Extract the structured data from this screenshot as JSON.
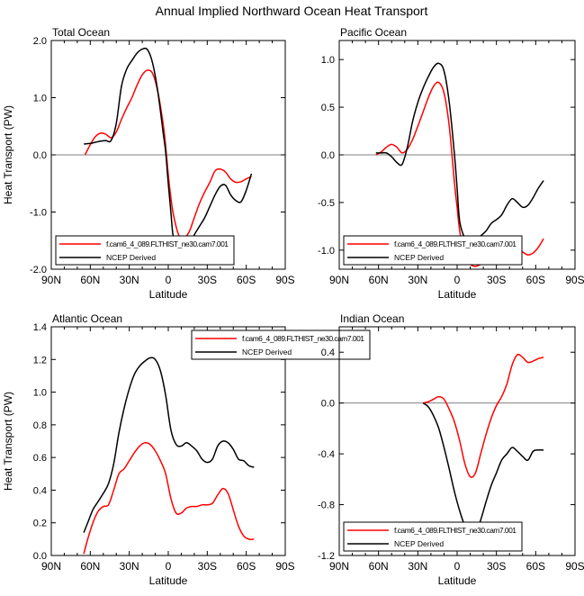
{
  "figure": {
    "title": "Annual Implied Northward Ocean Heat Transport"
  },
  "colors": {
    "model": "#ff0000",
    "ncep": "#000000",
    "zero_line": "#808080",
    "frame": "#000000"
  },
  "legend_labels": {
    "model": "f.cam6_4_089.FLTHIST_ne30.cam7.001",
    "ncep": "NCEP Derived"
  },
  "chart_data": [
    {
      "type": "line",
      "title": "Total Ocean",
      "xlabel": "Latitude",
      "ylabel": "Heat Transport (PW)",
      "xlim": [
        90,
        -90
      ],
      "ylim": [
        -2.0,
        2.0
      ],
      "x_ticks": [
        90,
        60,
        30,
        0,
        -30,
        -60,
        -90
      ],
      "x_tick_labels": [
        "90N",
        "60N",
        "30N",
        "0",
        "30S",
        "60S",
        "90S"
      ],
      "y_ticks": [
        -2.0,
        -1.0,
        0.0,
        1.0,
        2.0
      ],
      "y_tick_labels": [
        "-2.0",
        "-1.0",
        "0.0",
        "1.0",
        "2.0"
      ],
      "zero_line": true,
      "legend_position": "bottom-left",
      "series": [
        {
          "name": "f.cam6_4_089.FLTHIST_ne30.cam7.001",
          "color": "#ff0000",
          "x": [
            64,
            60,
            56,
            52,
            48,
            44,
            40,
            36,
            32,
            28,
            24,
            20,
            16,
            12,
            8,
            4,
            2,
            0,
            -2,
            -4,
            -8,
            -12,
            -16,
            -20,
            -24,
            -28,
            -32,
            -36,
            -40,
            -44,
            -48,
            -52,
            -56,
            -60,
            -64
          ],
          "y": [
            0.0,
            0.18,
            0.32,
            0.38,
            0.36,
            0.3,
            0.4,
            0.62,
            0.82,
            1.0,
            1.22,
            1.4,
            1.48,
            1.42,
            1.1,
            0.55,
            0.15,
            -0.35,
            -0.75,
            -1.05,
            -1.4,
            -1.45,
            -1.35,
            -1.1,
            -0.85,
            -0.65,
            -0.48,
            -0.28,
            -0.25,
            -0.3,
            -0.42,
            -0.48,
            -0.47,
            -0.42,
            -0.38
          ]
        },
        {
          "name": "NCEP Derived",
          "color": "#000000",
          "x": [
            65,
            60,
            56,
            52,
            48,
            44,
            40,
            36,
            32,
            28,
            24,
            20,
            16,
            12,
            8,
            4,
            2,
            0,
            -2,
            -4,
            -8,
            -12,
            -16,
            -20,
            -24,
            -28,
            -32,
            -36,
            -40,
            -44,
            -48,
            -52,
            -56,
            -60,
            -64
          ],
          "y": [
            0.19,
            0.2,
            0.22,
            0.24,
            0.25,
            0.25,
            0.55,
            1.2,
            1.5,
            1.65,
            1.78,
            1.85,
            1.84,
            1.6,
            1.1,
            0.4,
            0.05,
            -0.5,
            -1.0,
            -1.45,
            -1.6,
            -1.65,
            -1.58,
            -1.4,
            -1.25,
            -1.1,
            -0.9,
            -0.7,
            -0.55,
            -0.53,
            -0.7,
            -0.8,
            -0.82,
            -0.62,
            -0.33
          ]
        }
      ]
    },
    {
      "type": "line",
      "title": "Pacific Ocean",
      "xlabel": "Latitude",
      "ylabel": "",
      "xlim": [
        90,
        -90
      ],
      "ylim": [
        -1.2,
        1.2
      ],
      "x_ticks": [
        90,
        60,
        30,
        0,
        -30,
        -60,
        -90
      ],
      "x_tick_labels": [
        "90N",
        "60N",
        "30N",
        "0",
        "30S",
        "60S",
        "90S"
      ],
      "y_ticks": [
        -1.0,
        -0.5,
        0.0,
        0.5,
        1.0
      ],
      "y_tick_labels": [
        "-1.0",
        "-0.5",
        "0.0",
        "0.5",
        "1.0"
      ],
      "zero_line": true,
      "legend_position": "bottom-left",
      "series": [
        {
          "name": "f.cam6_4_089.FLTHIST_ne30.cam7.001",
          "color": "#ff0000",
          "x": [
            62,
            58,
            54,
            50,
            46,
            42,
            38,
            34,
            30,
            26,
            22,
            18,
            14,
            10,
            6,
            2,
            0,
            -2,
            -6,
            -10,
            -14,
            -18,
            -22,
            -26,
            -30,
            -34,
            -38,
            -42,
            -46,
            -50,
            -54,
            -58,
            -62,
            -66
          ],
          "y": [
            0.0,
            0.03,
            0.08,
            0.11,
            0.08,
            0.02,
            0.06,
            0.16,
            0.3,
            0.45,
            0.6,
            0.72,
            0.76,
            0.65,
            0.3,
            -0.3,
            -0.55,
            -0.8,
            -1.08,
            -1.15,
            -1.17,
            -1.15,
            -1.12,
            -1.1,
            -1.07,
            -1.05,
            -1.03,
            -1.01,
            -1.0,
            -1.02,
            -1.05,
            -1.03,
            -0.97,
            -0.88
          ]
        },
        {
          "name": "NCEP Derived",
          "color": "#000000",
          "x": [
            62,
            58,
            54,
            50,
            46,
            42,
            38,
            34,
            30,
            26,
            22,
            18,
            14,
            10,
            6,
            2,
            0,
            -2,
            -6,
            -10,
            -14,
            -18,
            -22,
            -26,
            -30,
            -34,
            -38,
            -42,
            -46,
            -50,
            -54,
            -58,
            -62,
            -66
          ],
          "y": [
            0.02,
            0.02,
            0.02,
            -0.02,
            -0.08,
            -0.1,
            0.08,
            0.35,
            0.55,
            0.7,
            0.82,
            0.92,
            0.96,
            0.88,
            0.55,
            0.0,
            -0.35,
            -0.7,
            -0.88,
            -0.93,
            -0.9,
            -0.85,
            -0.8,
            -0.72,
            -0.68,
            -0.63,
            -0.53,
            -0.46,
            -0.5,
            -0.55,
            -0.53,
            -0.45,
            -0.35,
            -0.27
          ]
        }
      ]
    },
    {
      "type": "line",
      "title": "Atlantic Ocean",
      "xlabel": "Latitude",
      "ylabel": "Heat Transport (PW)",
      "xlim": [
        90,
        -90
      ],
      "ylim": [
        0.0,
        1.4
      ],
      "x_ticks": [
        90,
        60,
        30,
        0,
        -30,
        -60,
        -90
      ],
      "x_tick_labels": [
        "90N",
        "60N",
        "30N",
        "0",
        "30S",
        "60S",
        "90S"
      ],
      "y_ticks": [
        0.0,
        0.2,
        0.4,
        0.6,
        0.8,
        1.0,
        1.2,
        1.4
      ],
      "y_tick_labels": [
        "0.0",
        "0.2",
        "0.4",
        "0.6",
        "0.8",
        "1.0",
        "1.2",
        "1.4"
      ],
      "zero_line": false,
      "legend_position": "top-right",
      "series": [
        {
          "name": "f.cam6_4_089.FLTHIST_ne30.cam7.001",
          "color": "#ff0000",
          "x": [
            65,
            62,
            58,
            54,
            50,
            46,
            42,
            38,
            34,
            30,
            26,
            22,
            18,
            14,
            10,
            6,
            2,
            -2,
            -6,
            -10,
            -14,
            -18,
            -22,
            -26,
            -30,
            -34,
            -38,
            -42,
            -46,
            -50,
            -54,
            -58,
            -62,
            -66
          ],
          "y": [
            0.01,
            0.1,
            0.2,
            0.27,
            0.3,
            0.31,
            0.4,
            0.5,
            0.53,
            0.58,
            0.63,
            0.67,
            0.69,
            0.68,
            0.64,
            0.58,
            0.5,
            0.35,
            0.26,
            0.26,
            0.29,
            0.3,
            0.3,
            0.31,
            0.31,
            0.32,
            0.37,
            0.41,
            0.38,
            0.28,
            0.18,
            0.12,
            0.1,
            0.1
          ]
        },
        {
          "name": "NCEP Derived",
          "color": "#000000",
          "x": [
            65,
            62,
            58,
            54,
            50,
            46,
            42,
            38,
            34,
            30,
            26,
            22,
            18,
            14,
            10,
            6,
            2,
            -2,
            -6,
            -10,
            -14,
            -18,
            -22,
            -26,
            -30,
            -34,
            -38,
            -42,
            -46,
            -50,
            -54,
            -58,
            -62,
            -66
          ],
          "y": [
            0.14,
            0.2,
            0.28,
            0.33,
            0.38,
            0.44,
            0.56,
            0.75,
            0.9,
            1.02,
            1.11,
            1.16,
            1.19,
            1.21,
            1.2,
            1.13,
            0.98,
            0.77,
            0.68,
            0.67,
            0.69,
            0.67,
            0.64,
            0.59,
            0.57,
            0.59,
            0.67,
            0.7,
            0.69,
            0.65,
            0.59,
            0.58,
            0.55,
            0.54
          ]
        }
      ]
    },
    {
      "type": "line",
      "title": "Indian Ocean",
      "xlabel": "Latitude",
      "ylabel": "",
      "xlim": [
        90,
        -90
      ],
      "ylim": [
        -1.2,
        0.6
      ],
      "x_ticks": [
        90,
        60,
        30,
        0,
        -30,
        -60,
        -90
      ],
      "x_tick_labels": [
        "90N",
        "60N",
        "30N",
        "0",
        "30S",
        "60S",
        "90S"
      ],
      "y_ticks": [
        -1.2,
        -0.8,
        -0.4,
        0.0,
        0.4
      ],
      "y_tick_labels": [
        "-1.2",
        "-0.8",
        "-0.4",
        "0.0",
        "0.4"
      ],
      "zero_line": true,
      "legend_position": "bottom-left",
      "series": [
        {
          "name": "f.cam6_4_089.FLTHIST_ne30.cam7.001",
          "color": "#ff0000",
          "x": [
            26,
            22,
            18,
            14,
            10,
            6,
            2,
            -2,
            -6,
            -10,
            -14,
            -18,
            -22,
            -26,
            -30,
            -34,
            -38,
            -42,
            -46,
            -50,
            -54,
            -58,
            -62,
            -66
          ],
          "y": [
            0.0,
            0.01,
            0.03,
            0.05,
            0.03,
            -0.05,
            -0.15,
            -0.3,
            -0.48,
            -0.58,
            -0.55,
            -0.4,
            -0.25,
            -0.12,
            -0.02,
            0.05,
            0.15,
            0.3,
            0.38,
            0.36,
            0.32,
            0.33,
            0.35,
            0.36
          ]
        },
        {
          "name": "NCEP Derived",
          "color": "#000000",
          "x": [
            26,
            22,
            18,
            14,
            10,
            6,
            2,
            -2,
            -6,
            -10,
            -14,
            -18,
            -22,
            -26,
            -30,
            -34,
            -38,
            -42,
            -46,
            -50,
            -54,
            -58,
            -62,
            -66
          ],
          "y": [
            0.0,
            -0.03,
            -0.1,
            -0.2,
            -0.35,
            -0.52,
            -0.7,
            -0.85,
            -0.97,
            -1.05,
            -1.02,
            -0.92,
            -0.78,
            -0.65,
            -0.55,
            -0.45,
            -0.4,
            -0.35,
            -0.38,
            -0.42,
            -0.45,
            -0.38,
            -0.37,
            -0.37
          ]
        }
      ]
    }
  ]
}
